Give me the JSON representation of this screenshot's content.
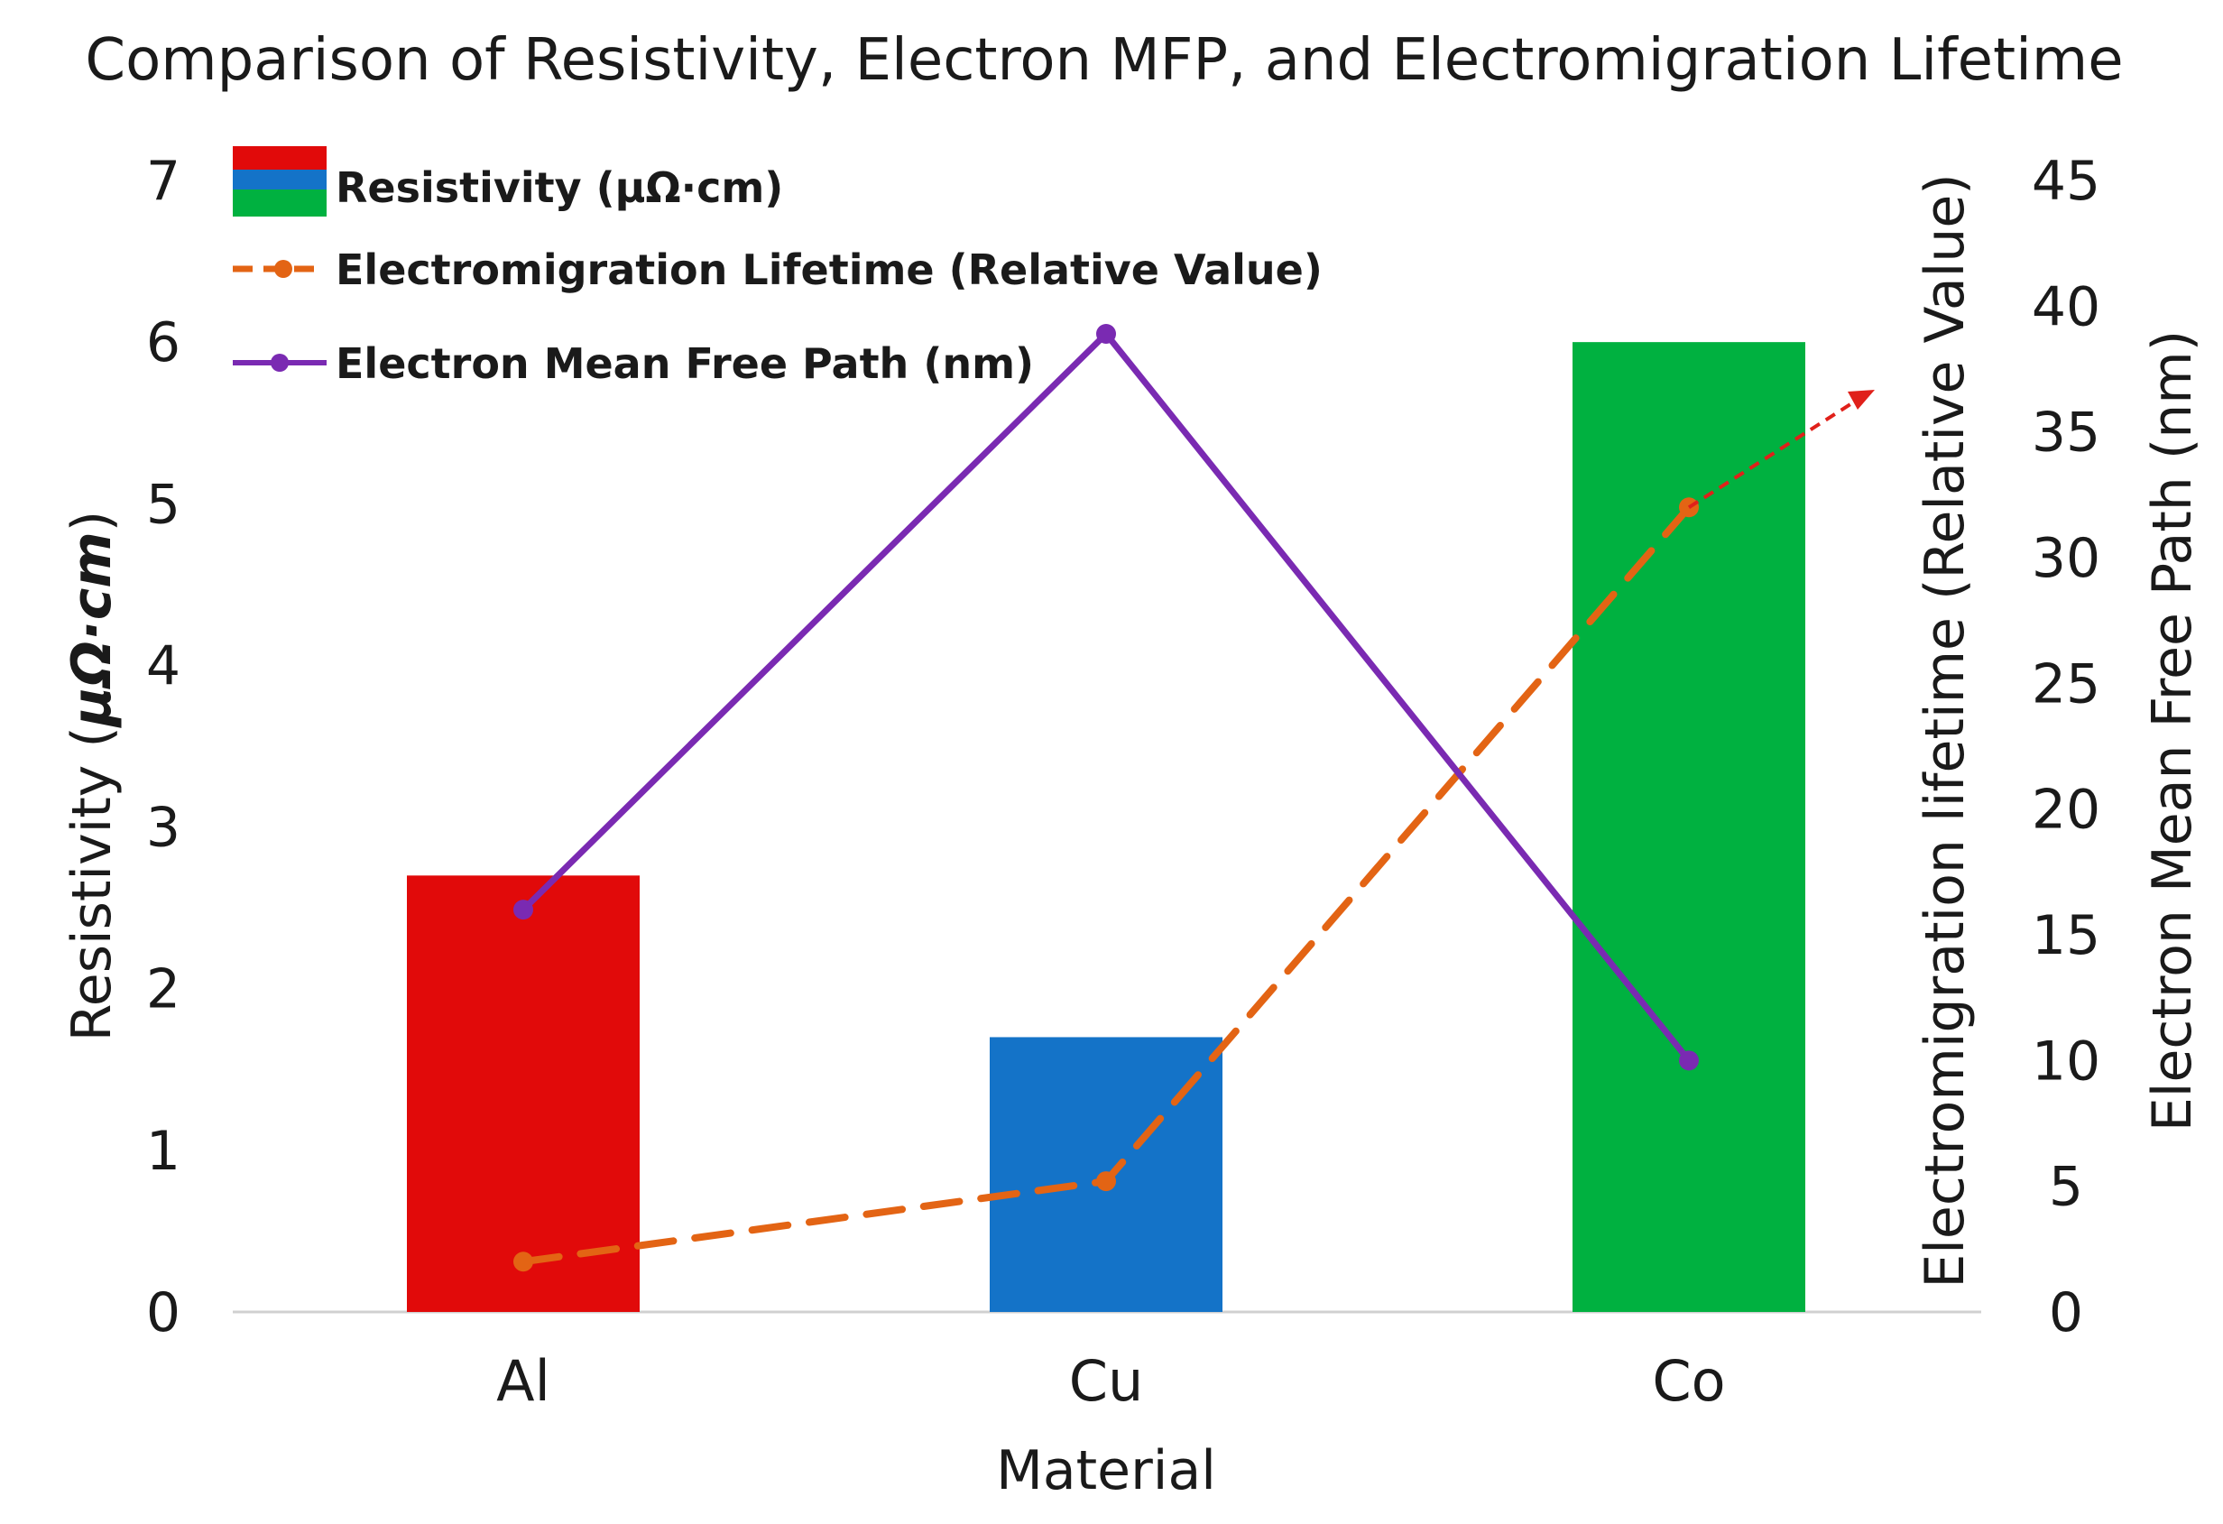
{
  "chart_data": {
    "type": "bar",
    "title": "Comparison of Resistivity, Electron MFP, and Electromigration Lifetime",
    "xlabel": "Material",
    "categories": [
      "Al",
      "Cu",
      "Co"
    ],
    "left_axis": {
      "label_prefix": "Resistivity (",
      "label_unit": "μΩ·cm",
      "label_suffix": ")",
      "ylim": [
        0,
        7
      ],
      "ticks": [
        "0",
        "1",
        "2",
        "3",
        "4",
        "5",
        "6",
        "7"
      ]
    },
    "right_axis_inner": {
      "label": "Electromigration lifetime (Relative Value)"
    },
    "right_axis_outer": {
      "label": "Electron Mean Free Path (nm)",
      "ylim": [
        0,
        45
      ],
      "ticks": [
        "0",
        "5",
        "10",
        "15",
        "20",
        "25",
        "30",
        "35",
        "40",
        "45"
      ]
    },
    "series": [
      {
        "name": "Resistivity (μΩ·cm)",
        "kind": "bar",
        "axis": "left",
        "values": [
          2.7,
          1.7,
          6.0
        ],
        "colors": [
          "#e10a0a",
          "#1473c8",
          "#00b140"
        ]
      },
      {
        "name": "Electromigration Lifetime (Relative Value)",
        "kind": "line-dashed",
        "axis": "right",
        "values": [
          2,
          5.2,
          32
        ],
        "color": "#e36414",
        "trend_arrow_color": "#e0201a"
      },
      {
        "name": "Electron Mean Free Path (nm)",
        "kind": "line",
        "axis": "right",
        "values": [
          16,
          38.9,
          10
        ],
        "color": "#7a2ab2"
      }
    ],
    "legend": {
      "position": "top-left",
      "entries": [
        "Resistivity (μΩ·cm)",
        "Electromigration Lifetime (Relative Value)",
        "Electron Mean Free Path (nm)"
      ]
    }
  }
}
